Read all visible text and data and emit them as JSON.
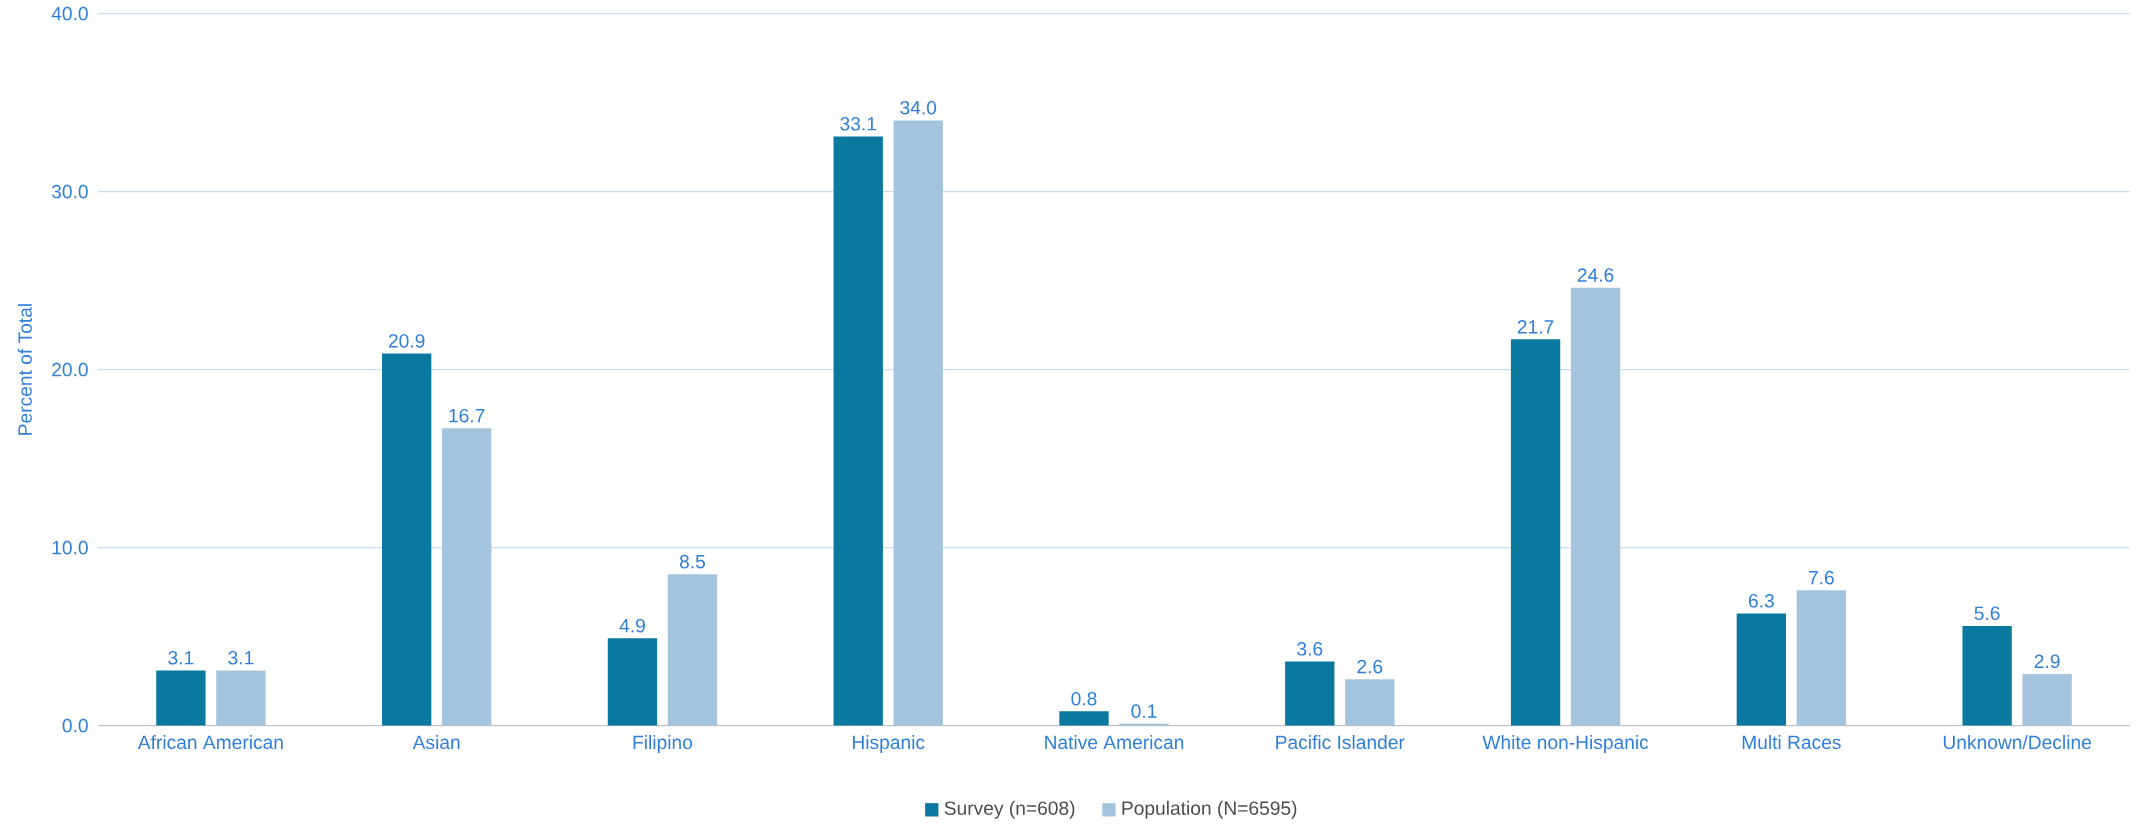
{
  "chart_data": {
    "type": "bar",
    "ylabel": "Percent of Total",
    "categories": [
      "African American",
      "Asian",
      "Filipino",
      "Hispanic",
      "Native American",
      "Pacific Islander",
      "White non-Hispanic",
      "Multi Races",
      "Unknown/Decline"
    ],
    "series": [
      {
        "name": "Survey (n=608)",
        "color": "#0a789f",
        "values": [
          3.1,
          20.9,
          4.9,
          33.1,
          0.8,
          3.6,
          21.7,
          6.3,
          5.6
        ],
        "value_labels": [
          "3.1",
          "20.9",
          "4.9",
          "33.1",
          "0.8",
          "3.6",
          "21.7",
          "6.3",
          "5.6"
        ]
      },
      {
        "name": "Population (N=6595)",
        "color": "#a3c4dc",
        "values": [
          3.1,
          16.7,
          8.5,
          34.0,
          0.1,
          2.6,
          24.6,
          7.6,
          2.9
        ],
        "value_labels": [
          "3.1",
          "16.7",
          "8.5",
          "34.0",
          "0.1",
          "2.6",
          "24.6",
          "7.6",
          "2.9"
        ]
      }
    ],
    "ylim": [
      0,
      40
    ],
    "yticks": [
      {
        "value": 0,
        "label": "0.0"
      },
      {
        "value": 10,
        "label": "10.0"
      },
      {
        "value": 20,
        "label": "20.0"
      },
      {
        "value": 30,
        "label": "30.0"
      },
      {
        "value": 40,
        "label": "40.0"
      }
    ],
    "grid": "y",
    "legend": "bottom"
  }
}
